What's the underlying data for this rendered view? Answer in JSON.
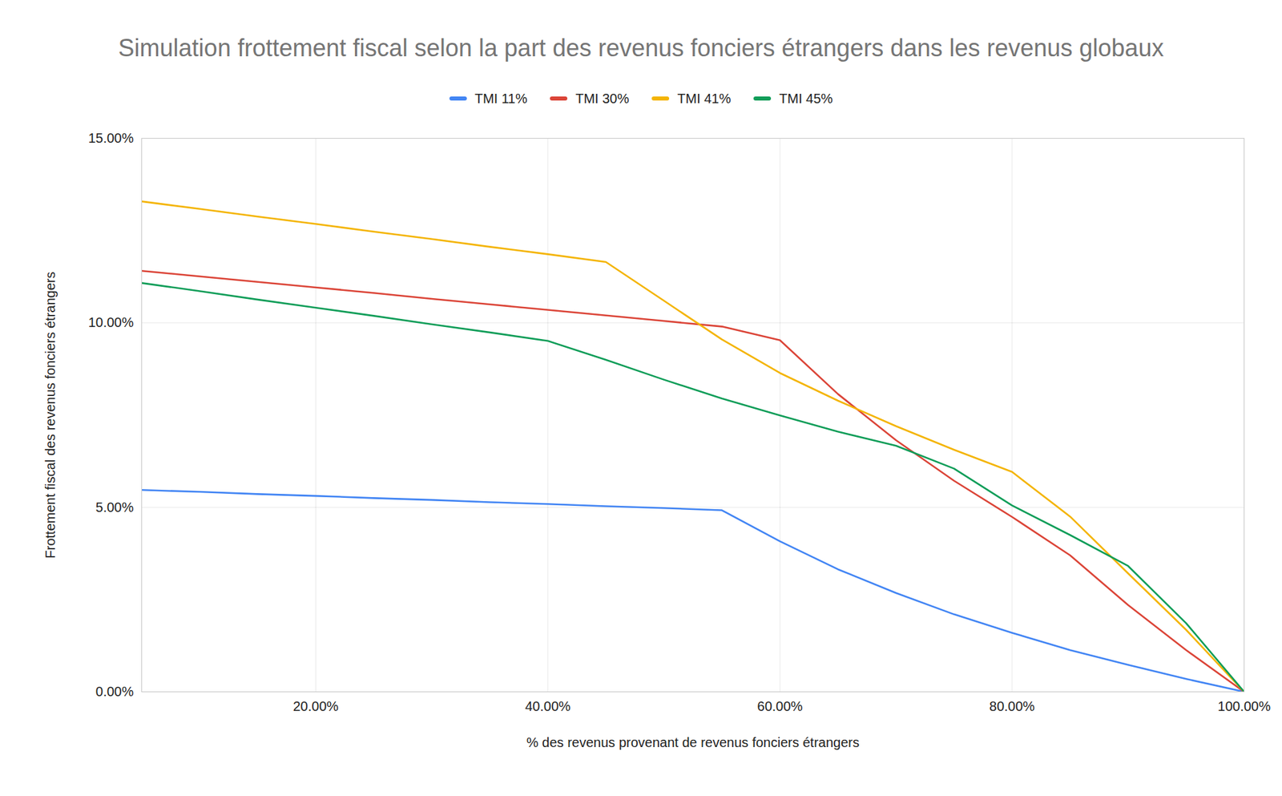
{
  "chart_data": {
    "type": "line",
    "title": "Simulation frottement fiscal selon la part des revenus fonciers étrangers dans les revenus globaux",
    "x_label": "% des revenus provenant de revenus fonciers étrangers",
    "y_label": "Frottement fiscal des revenus fonciers étrangers",
    "x": [
      5,
      10,
      15,
      20,
      25,
      30,
      35,
      40,
      45,
      50,
      55,
      60,
      65,
      70,
      75,
      80,
      85,
      90,
      95,
      100
    ],
    "series": [
      {
        "name": "TMI 11%",
        "color": "#4285f4",
        "values": [
          5.47,
          5.42,
          5.36,
          5.31,
          5.25,
          5.2,
          5.14,
          5.09,
          5.03,
          4.98,
          4.92,
          4.08,
          3.32,
          2.68,
          2.1,
          1.6,
          1.13,
          0.73,
          0.35,
          0
        ]
      },
      {
        "name": "TMI 30%",
        "color": "#db4437",
        "values": [
          11.41,
          11.26,
          11.11,
          10.96,
          10.81,
          10.65,
          10.5,
          10.35,
          10.2,
          10.05,
          9.9,
          9.53,
          8.07,
          6.82,
          5.72,
          4.74,
          3.7,
          2.35,
          1.13,
          0
        ]
      },
      {
        "name": "TMI 41%",
        "color": "#f4b400",
        "values": [
          13.29,
          13.09,
          12.88,
          12.68,
          12.47,
          12.27,
          12.06,
          11.86,
          11.65,
          10.6,
          9.55,
          8.64,
          7.89,
          7.2,
          6.56,
          5.96,
          4.75,
          3.21,
          1.68,
          0
        ]
      },
      {
        "name": "TMI 45%",
        "color": "#0f9d58",
        "values": [
          11.08,
          10.86,
          10.63,
          10.41,
          10.19,
          9.96,
          9.74,
          9.51,
          9.0,
          8.46,
          7.95,
          7.49,
          7.05,
          6.67,
          6.05,
          5.05,
          4.25,
          3.41,
          1.86,
          0
        ]
      }
    ],
    "xlim": [
      5,
      100
    ],
    "xticks": [
      {
        "value": 20,
        "label": "20.00%"
      },
      {
        "value": 40,
        "label": "40.00%"
      },
      {
        "value": 60,
        "label": "60.00%"
      },
      {
        "value": 80,
        "label": "80.00%"
      },
      {
        "value": 100,
        "label": "100.00%"
      }
    ],
    "ylim": [
      0,
      15
    ],
    "yticks": [
      {
        "value": 0,
        "label": "0.00%"
      },
      {
        "value": 5,
        "label": "5.00%"
      },
      {
        "value": 10,
        "label": "10.00%"
      },
      {
        "value": 15,
        "label": "15.00%"
      }
    ],
    "grid": true,
    "legend": "top"
  }
}
